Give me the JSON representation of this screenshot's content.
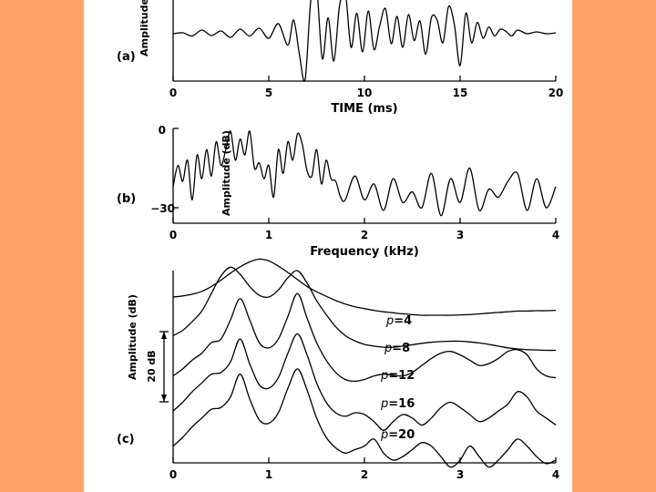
{
  "chart_data": [
    {
      "type": "line",
      "panel_label": "(a)",
      "xlabel": "TIME (ms)",
      "ylabel": "Amplitude",
      "xlim": [
        0,
        20
      ],
      "ylim": [
        -1,
        1
      ],
      "x_ticks": [
        "0",
        "5",
        "10",
        "15",
        "20"
      ],
      "series": [
        {
          "name": "waveform",
          "x": [
            0,
            0.5,
            1,
            1.5,
            2,
            2.5,
            3,
            3.5,
            4,
            4.5,
            5,
            5.5,
            6,
            6.3,
            6.6,
            6.9,
            7.2,
            7.5,
            7.8,
            8.1,
            8.4,
            8.7,
            9,
            9.3,
            9.6,
            9.9,
            10.2,
            10.5,
            10.8,
            11.1,
            11.4,
            11.7,
            12,
            12.3,
            12.6,
            12.9,
            13.2,
            13.5,
            13.8,
            14.1,
            14.4,
            14.7,
            15,
            15.3,
            15.6,
            15.9,
            16.2,
            16.5,
            16.8,
            17.1,
            17.4,
            17.7,
            18,
            18.5,
            19,
            19.5,
            20
          ],
          "values": [
            0.0,
            0.02,
            -0.05,
            0.08,
            -0.04,
            0.06,
            -0.08,
            0.1,
            -0.05,
            0.12,
            -0.1,
            0.22,
            -0.25,
            0.3,
            -0.45,
            -1.0,
            0.75,
            1.0,
            -0.55,
            0.35,
            -0.6,
            0.62,
            0.9,
            -0.3,
            0.45,
            -0.4,
            0.5,
            -0.35,
            0.18,
            0.55,
            -0.22,
            0.38,
            -0.3,
            0.42,
            -0.15,
            0.28,
            -0.45,
            0.35,
            0.3,
            -0.2,
            0.6,
            0.2,
            -0.7,
            0.45,
            -0.2,
            0.25,
            -0.1,
            0.15,
            -0.05,
            0.1,
            0.05,
            -0.05,
            0.08,
            0.0,
            0.04,
            0.0,
            0.02
          ]
        }
      ]
    },
    {
      "type": "line",
      "panel_label": "(b)",
      "xlabel": "Frequency (kHz)",
      "ylabel": "Amplitude (dB)",
      "xlim": [
        0,
        4
      ],
      "ylim": [
        -33,
        0
      ],
      "x_ticks": [
        "0",
        "1",
        "2",
        "3",
        "4"
      ],
      "y_ticks": [
        "0",
        "−30"
      ],
      "series": [
        {
          "name": "spectrum",
          "x": [
            0,
            0.05,
            0.1,
            0.15,
            0.2,
            0.25,
            0.3,
            0.35,
            0.4,
            0.45,
            0.5,
            0.55,
            0.6,
            0.65,
            0.7,
            0.75,
            0.8,
            0.85,
            0.9,
            0.95,
            1.0,
            1.05,
            1.1,
            1.15,
            1.2,
            1.25,
            1.3,
            1.35,
            1.4,
            1.45,
            1.5,
            1.55,
            1.6,
            1.65,
            1.7,
            1.75,
            1.8,
            1.9,
            2.0,
            2.1,
            2.2,
            2.3,
            2.4,
            2.5,
            2.6,
            2.7,
            2.8,
            2.9,
            3.0,
            3.1,
            3.2,
            3.3,
            3.4,
            3.5,
            3.6,
            3.7,
            3.8,
            3.9,
            4.0
          ],
          "values": [
            -22,
            -14,
            -20,
            -12,
            -27,
            -10,
            -19,
            -8,
            -18,
            -5,
            -14,
            -8,
            -1,
            -12,
            -4,
            -10,
            -1,
            -15,
            -13,
            -19,
            -14,
            -26,
            -8,
            -17,
            -5,
            -12,
            -2,
            -6,
            -16,
            -18,
            -8,
            -21,
            -12,
            -19,
            -20,
            -26,
            -27,
            -18,
            -27,
            -21,
            -31,
            -19,
            -28,
            -24,
            -30,
            -17,
            -33,
            -19,
            -28,
            -15,
            -31,
            -23,
            -26,
            -20,
            -17,
            -31,
            -19,
            -30,
            -22
          ]
        }
      ]
    },
    {
      "type": "line",
      "panel_label": "(c)",
      "xlabel": "",
      "ylabel": "Amplitude (dB)",
      "xlim": [
        0,
        4
      ],
      "x_ticks": [
        "0",
        "1",
        "2",
        "3",
        "4"
      ],
      "scale_bar": "20 dB",
      "x": [
        0,
        0.1,
        0.2,
        0.3,
        0.4,
        0.5,
        0.6,
        0.7,
        0.8,
        0.9,
        1.0,
        1.1,
        1.2,
        1.3,
        1.4,
        1.5,
        1.6,
        1.7,
        1.8,
        1.9,
        2.0,
        2.1,
        2.2,
        2.3,
        2.4,
        2.5,
        2.6,
        2.7,
        2.8,
        2.9,
        3.0,
        3.1,
        3.2,
        3.3,
        3.4,
        3.5,
        3.6,
        3.7,
        3.8,
        3.9,
        4.0
      ],
      "series": [
        {
          "name": "p=4",
          "model_order_symbol": "p",
          "model_order_value": "4",
          "offset_db": 0,
          "values": [
            0,
            0.3,
            0.8,
            1.6,
            3.0,
            4.8,
            6.8,
            8.6,
            10.0,
            10.8,
            10.3,
            8.8,
            7.0,
            5.0,
            3.0,
            1.5,
            0.2,
            -1.0,
            -2.0,
            -2.8,
            -3.3,
            -3.8,
            -4.2,
            -4.5,
            -4.8,
            -5.0,
            -5.2,
            -5.2,
            -5.2,
            -5.2,
            -5.1,
            -5.0,
            -4.8,
            -4.6,
            -4.4,
            -4.2,
            -4.0,
            -4.0,
            -3.9,
            -3.9,
            -3.8
          ]
        },
        {
          "name": "p=8",
          "model_order_symbol": "p",
          "model_order_value": "8",
          "offset_db": -11,
          "values": [
            0,
            1.5,
            4,
            7,
            12,
            17,
            19.5,
            17.5,
            14,
            11.5,
            11,
            13,
            16.5,
            18.5,
            15,
            10,
            6,
            2.5,
            0,
            -1.5,
            -2.5,
            -3.0,
            -3.3,
            -3.3,
            -3.0,
            -2.6,
            -2.2,
            -1.9,
            -1.7,
            -1.6,
            -1.6,
            -1.8,
            -2.1,
            -2.5,
            -3.0,
            -3.5,
            -3.8,
            -4.0,
            -4.1,
            -4.2,
            -4.2
          ]
        },
        {
          "name": "p=12",
          "model_order_symbol": "p",
          "model_order_value": "12",
          "offset_db": -22.5,
          "values": [
            0,
            2,
            4.5,
            6.5,
            9.5,
            10.5,
            16,
            22,
            16,
            9.5,
            8,
            10.5,
            17,
            23.5,
            16.5,
            9.5,
            4.5,
            1,
            -1,
            -1.5,
            -1,
            0,
            0.5,
            0.2,
            0,
            1,
            3,
            5,
            6.5,
            7,
            6,
            4.5,
            3,
            3.5,
            5,
            7,
            7.5,
            6,
            2,
            0,
            -0.5
          ]
        },
        {
          "name": "p=16",
          "model_order_symbol": "p",
          "model_order_value": "16",
          "offset_db": -32.5,
          "values": [
            0,
            2.5,
            5.5,
            8,
            10.5,
            11,
            14,
            20.5,
            13.5,
            7.5,
            6.5,
            9.5,
            16.5,
            22,
            16,
            8,
            2.5,
            -0.5,
            -1.5,
            -0.5,
            -1,
            -3,
            -5.5,
            -3,
            -1,
            -2,
            -4,
            -2,
            1,
            2.5,
            1,
            -1,
            -3,
            -2,
            0,
            2,
            5.5,
            4,
            0,
            -2,
            -4
          ]
        },
        {
          "name": "p=20",
          "model_order_symbol": "p",
          "model_order_value": "20",
          "offset_db": -42.5,
          "values": [
            0,
            2.5,
            5.5,
            8,
            10.5,
            11,
            14,
            20.5,
            13.5,
            7.5,
            6.5,
            9.5,
            16.5,
            22,
            16,
            8,
            2.5,
            -0.5,
            -2,
            -1,
            0,
            2,
            -2,
            -4,
            -3,
            -1,
            1,
            0,
            -3,
            -6,
            -4,
            0,
            -3,
            -6,
            -4,
            -1,
            2,
            0,
            -3,
            -5,
            -4
          ]
        }
      ]
    }
  ]
}
